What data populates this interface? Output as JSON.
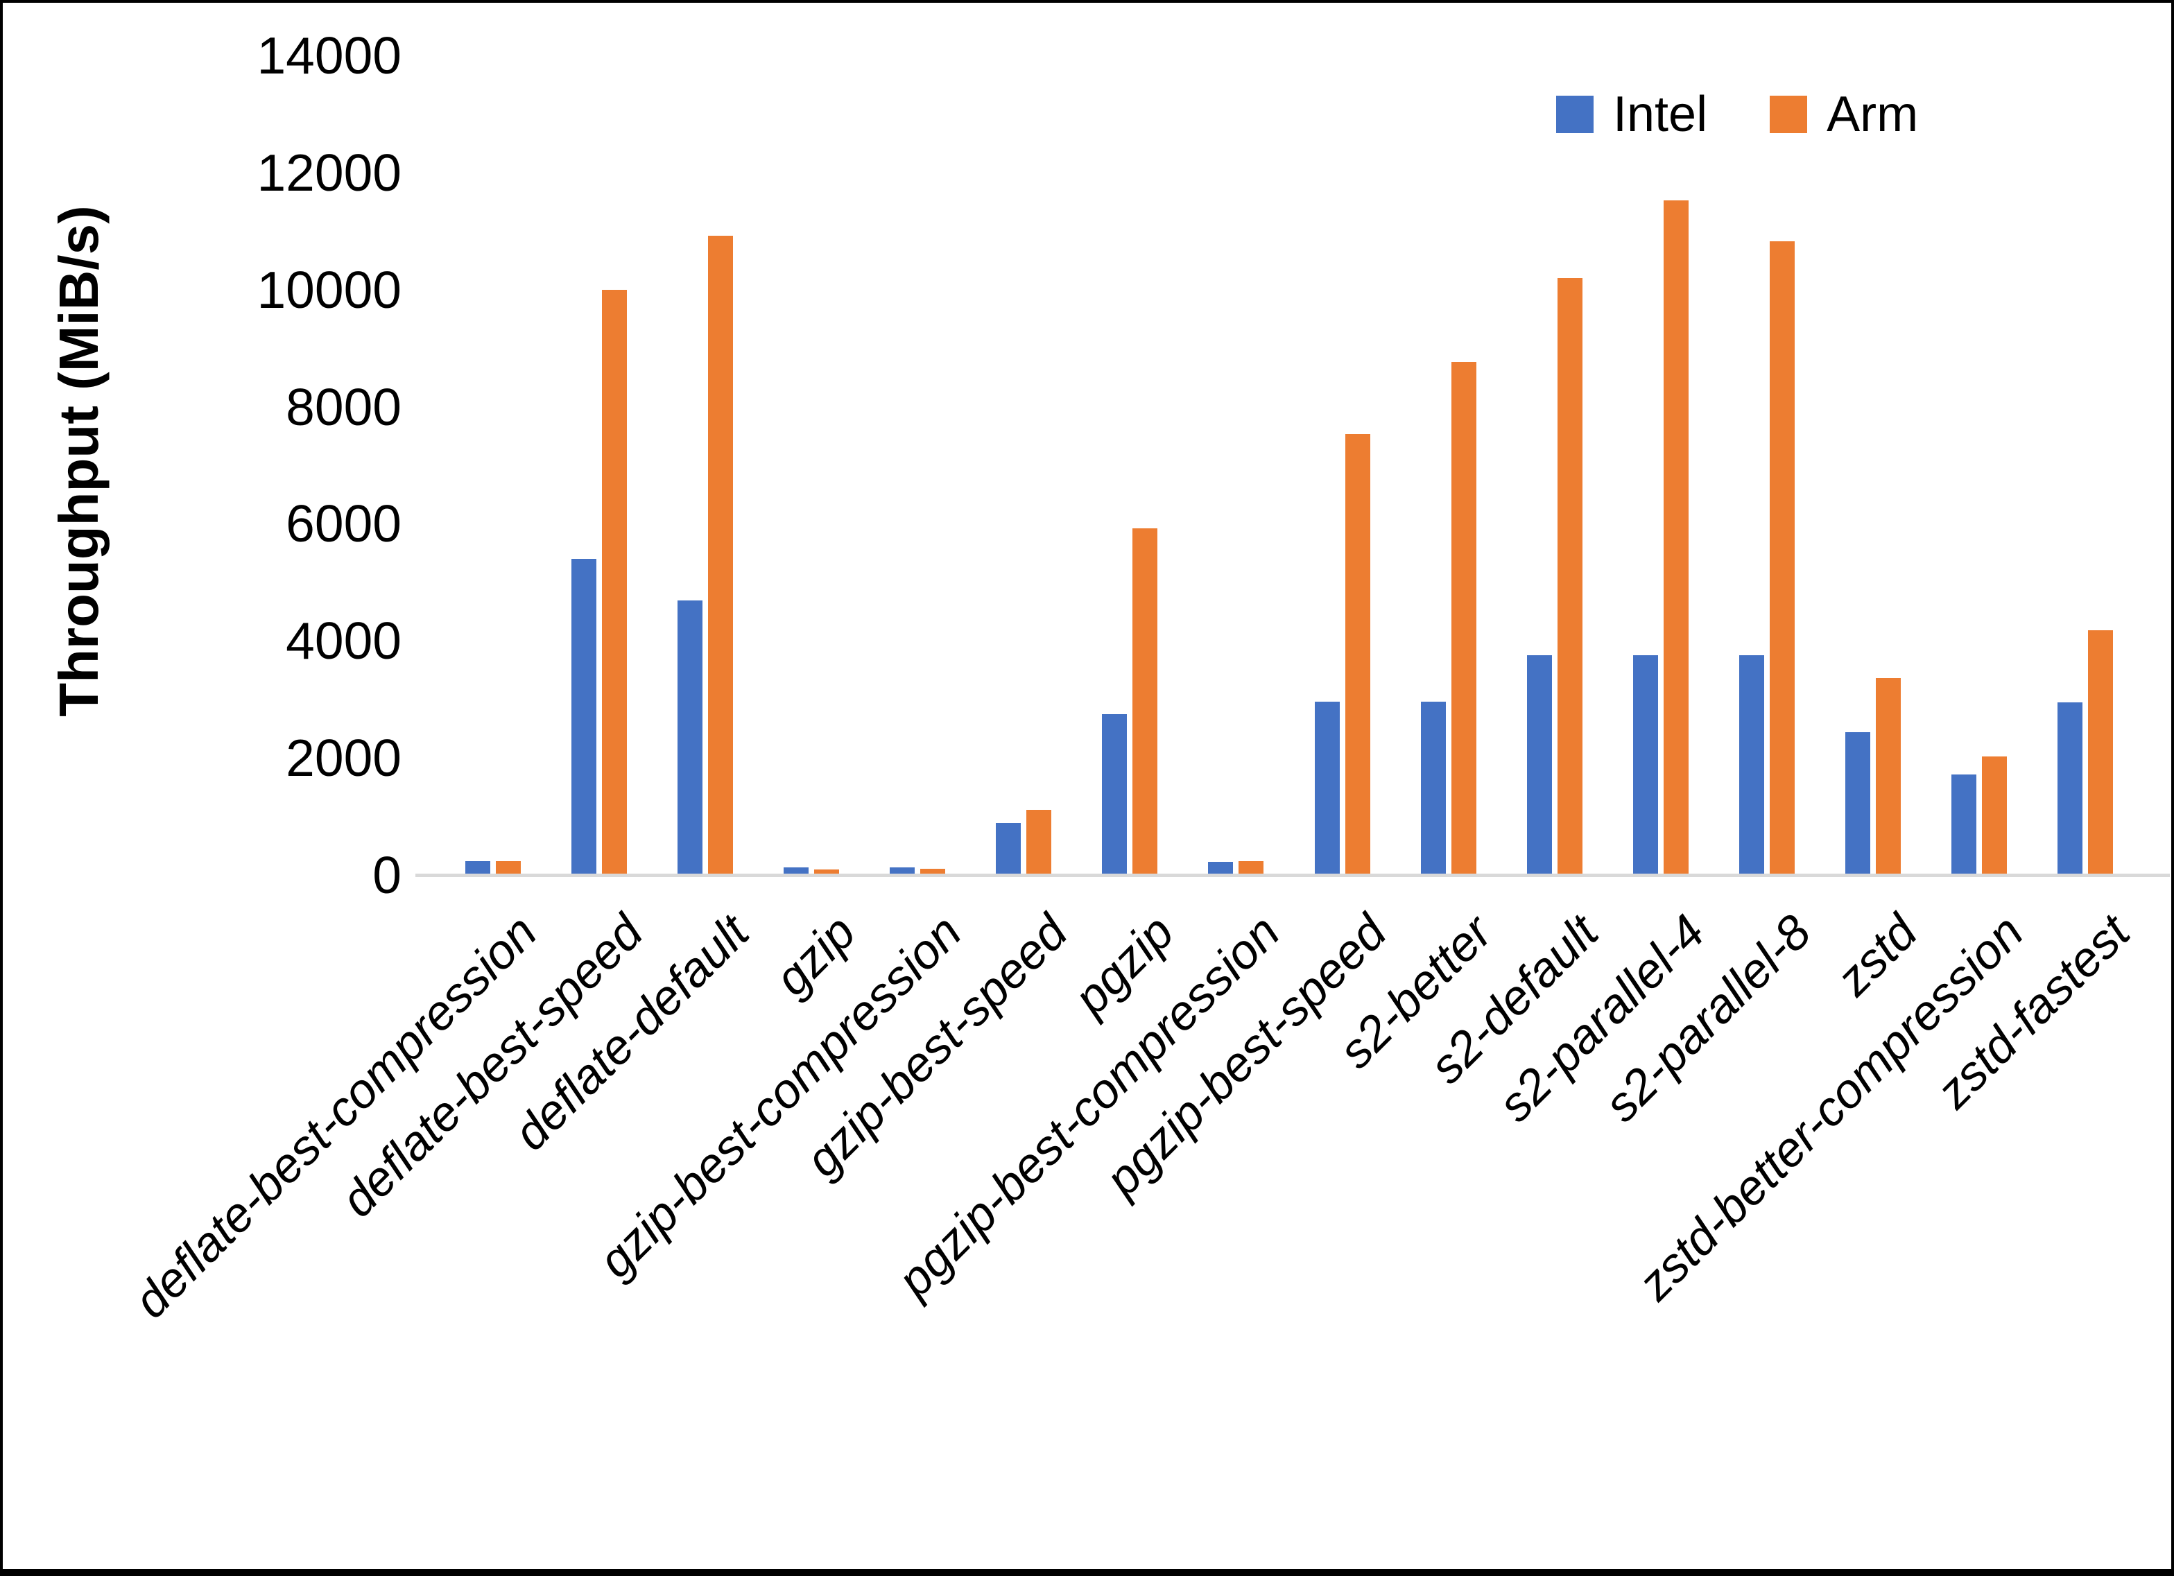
{
  "chart_data": {
    "type": "bar",
    "title": "",
    "xlabel": "",
    "ylabel": "Throughput (MiB/s)",
    "ylim": [
      0,
      14000
    ],
    "ytick_step": 2000,
    "ytick_labels": [
      "0",
      "2000",
      "4000",
      "6000",
      "8000",
      "10000",
      "12000",
      "14000"
    ],
    "grid": false,
    "legend_position": "top-right",
    "categories": [
      "deflate-best-compression",
      "deflate-best-speed",
      "deflate-default",
      "gzip",
      "gzip-best-compression",
      "gzip-best-speed",
      "pgzip",
      "pgzip-best-compression",
      "pgzip-best-speed",
      "s2-better",
      "s2-default",
      "s2-parallel-4",
      "s2-parallel-8",
      "zstd",
      "zstd-better-compression",
      "zstd-fastest"
    ],
    "series": [
      {
        "name": "Intel",
        "color": "#4472C4",
        "values": [
          240,
          5400,
          4690,
          125,
          125,
          890,
          2750,
          220,
          2960,
          2960,
          3760,
          3760,
          3760,
          2440,
          1720,
          2950
        ]
      },
      {
        "name": "Arm",
        "color": "#ED7D31",
        "values": [
          235,
          10000,
          10920,
          100,
          110,
          1110,
          5920,
          235,
          7530,
          8760,
          10200,
          11520,
          10820,
          3360,
          2020,
          4180
        ]
      }
    ],
    "axis_line_color": "#D9D9D9"
  }
}
